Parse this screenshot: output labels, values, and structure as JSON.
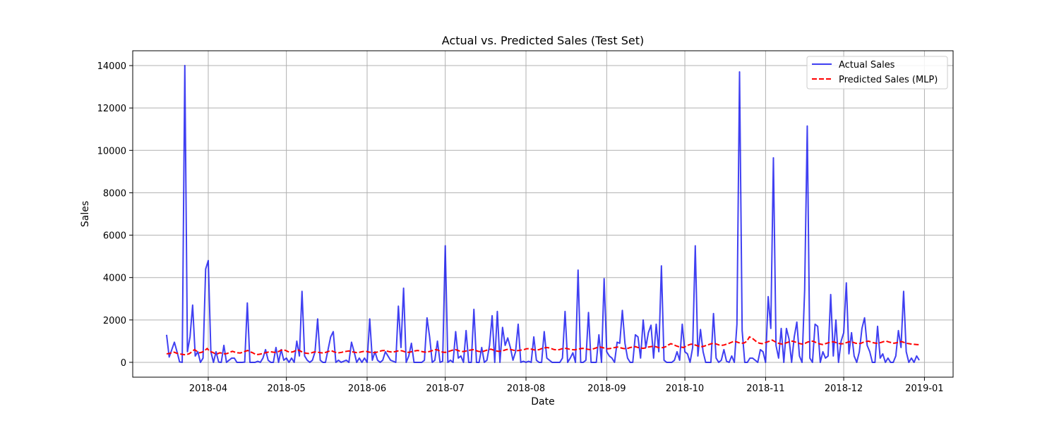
{
  "chart_data": {
    "type": "line",
    "title": "Actual vs. Predicted Sales (Test Set)",
    "xlabel": "Date",
    "ylabel": "Sales",
    "x_start": "2018-03-16",
    "x_end": "2018-12-30",
    "xlim": [
      "2018-03-03",
      "2019-01-12"
    ],
    "ylim": [
      -700,
      14700
    ],
    "x_ticks": [
      "2018-04-01",
      "2018-05-01",
      "2018-06-01",
      "2018-07-01",
      "2018-08-01",
      "2018-09-01",
      "2018-10-01",
      "2018-11-01",
      "2018-12-01",
      "2019-01-01"
    ],
    "x_tick_labels": [
      "2018-04",
      "2018-05",
      "2018-06",
      "2018-07",
      "2018-08",
      "2018-09",
      "2018-10",
      "2018-11",
      "2018-12",
      "2019-01"
    ],
    "y_ticks": [
      0,
      2000,
      4000,
      6000,
      8000,
      10000,
      12000,
      14000
    ],
    "y_tick_labels": [
      "0",
      "2000",
      "4000",
      "6000",
      "8000",
      "10000",
      "12000",
      "14000"
    ],
    "grid": true,
    "legend_position": "top-right",
    "series": [
      {
        "name": "Actual Sales",
        "color": "#0000ee",
        "style": "solid",
        "values": [
          1300,
          250,
          600,
          950,
          500,
          20,
          0,
          14000,
          500,
          1200,
          2700,
          300,
          500,
          0,
          200,
          4400,
          4800,
          500,
          0,
          500,
          10,
          0,
          800,
          0,
          100,
          200,
          200,
          0,
          0,
          0,
          10,
          2800,
          0,
          0,
          0,
          50,
          0,
          200,
          600,
          100,
          0,
          0,
          700,
          0,
          600,
          100,
          200,
          0,
          200,
          0,
          1000,
          300,
          3350,
          300,
          100,
          0,
          100,
          500,
          2050,
          100,
          0,
          0,
          600,
          1200,
          1450,
          0,
          100,
          0,
          50,
          100,
          0,
          950,
          500,
          0,
          200,
          0,
          200,
          0,
          2050,
          100,
          500,
          100,
          0,
          100,
          500,
          300,
          100,
          50,
          0,
          2650,
          700,
          3500,
          0,
          300,
          900,
          0,
          0,
          0,
          0,
          100,
          2100,
          1200,
          0,
          100,
          1000,
          0,
          50,
          5500,
          0,
          100,
          0,
          1450,
          200,
          300,
          0,
          1500,
          0,
          0,
          2500,
          0,
          0,
          700,
          0,
          100,
          800,
          2200,
          0,
          2400,
          0,
          1650,
          800,
          1150,
          700,
          100,
          500,
          1800,
          0,
          50,
          0,
          50,
          0,
          1200,
          100,
          0,
          0,
          1450,
          200,
          100,
          0,
          0,
          0,
          0,
          200,
          2400,
          0,
          200,
          450,
          0,
          4350,
          0,
          0,
          100,
          2350,
          0,
          0,
          0,
          1300,
          0,
          3950,
          500,
          300,
          200,
          0,
          950,
          900,
          2450,
          900,
          200,
          0,
          0,
          1300,
          1200,
          200,
          2000,
          700,
          1400,
          1750,
          200,
          1800,
          500,
          4550,
          100,
          0,
          0,
          0,
          100,
          500,
          100,
          1800,
          500,
          400,
          0,
          700,
          5500,
          300,
          1550,
          500,
          0,
          0,
          0,
          2300,
          200,
          0,
          100,
          600,
          50,
          0,
          300,
          0,
          1800,
          13700,
          1500,
          0,
          0,
          200,
          200,
          100,
          0,
          600,
          500,
          0,
          3100,
          1600,
          9650,
          800,
          200,
          1600,
          0,
          1600,
          1100,
          0,
          1200,
          1900,
          300,
          0,
          3400,
          11150,
          200,
          0,
          1800,
          1700,
          0,
          500,
          200,
          300,
          3200,
          300,
          2000,
          0,
          1000,
          1400,
          3750,
          400,
          1400,
          300,
          0,
          500,
          1600,
          2100,
          800,
          500,
          0,
          0,
          1700,
          200,
          400,
          0,
          200,
          0,
          0,
          300,
          1500,
          700,
          3350,
          500,
          0,
          200,
          0,
          300,
          100
        ]
      },
      {
        "name": "Predicted Sales (MLP)",
        "color": "#ff0000",
        "style": "dashed",
        "values": [
          400,
          420,
          450,
          480,
          430,
          400,
          380,
          360,
          370,
          410,
          500,
          600,
          520,
          450,
          480,
          550,
          650,
          520,
          480,
          420,
          400,
          450,
          430,
          400,
          420,
          480,
          520,
          480,
          450,
          440,
          470,
          520,
          560,
          500,
          450,
          380,
          370,
          390,
          420,
          450,
          480,
          500,
          480,
          470,
          500,
          560,
          600,
          560,
          500,
          480,
          500,
          560,
          580,
          520,
          460,
          430,
          420,
          440,
          480,
          500,
          470,
          450,
          440,
          480,
          520,
          550,
          500,
          460,
          450,
          470,
          500,
          520,
          540,
          500,
          480,
          460,
          470,
          500,
          520,
          510,
          480,
          470,
          460,
          480,
          520,
          550,
          560,
          530,
          500,
          480,
          500,
          530,
          560,
          540,
          500,
          470,
          480,
          510,
          540,
          560,
          540,
          500,
          480,
          490,
          520,
          560,
          600,
          580,
          520,
          480,
          470,
          500,
          540,
          580,
          600,
          560,
          520,
          510,
          530,
          560,
          580,
          600,
          560,
          520,
          500,
          520,
          560,
          600,
          620,
          580,
          540,
          520,
          530,
          560,
          600,
          620,
          600,
          570,
          550,
          560,
          580,
          600,
          640,
          650,
          620,
          590,
          580,
          600,
          650,
          680,
          700,
          680,
          640,
          600,
          590,
          600,
          640,
          660,
          650,
          620,
          600,
          590,
          610,
          640,
          660,
          650,
          620,
          600,
          620,
          660,
          700,
          720,
          700,
          660,
          640,
          650,
          680,
          700,
          720,
          690,
          660,
          640,
          660,
          700,
          720,
          740,
          700,
          680,
          660,
          680,
          720,
          740,
          760,
          740,
          700,
          680,
          700,
          740,
          820,
          880,
          840,
          780,
          740,
          720,
          700,
          760,
          820,
          860,
          840,
          800,
          760,
          740,
          760,
          800,
          840,
          880,
          900,
          860,
          820,
          800,
          820,
          860,
          900,
          950,
          1000,
          960,
          920,
          900,
          920,
          1000,
          1200,
          1150,
          1050,
          950,
          900,
          880,
          920,
          960,
          1000,
          1050,
          980,
          920,
          880,
          860,
          900,
          940,
          980,
          1000,
          960,
          920,
          880,
          860,
          900,
          960,
          980,
          1000,
          950,
          900,
          860,
          840,
          880,
          920,
          950,
          970,
          940,
          900,
          870,
          880,
          920,
          960,
          980,
          940,
          900,
          880,
          900,
          950,
          980,
          1000,
          960,
          920,
          900,
          910,
          940,
          980,
          1000,
          960,
          930,
          900,
          920,
          960,
          980,
          940,
          900,
          880,
          860,
          850,
          840,
          830
        ]
      }
    ]
  }
}
